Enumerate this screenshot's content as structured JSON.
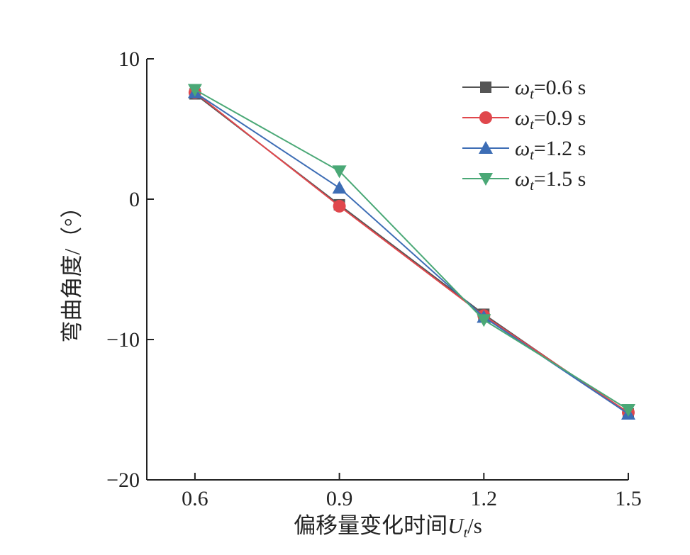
{
  "chart_data": {
    "type": "line",
    "title": "",
    "xlabel_prefix": "偏移量变化时间",
    "xlabel_var": "U",
    "xlabel_sub": "t",
    "xlabel_unit": "/s",
    "ylabel": "弯曲角度/（°）",
    "categories": [
      "0.6",
      "0.9",
      "1.2",
      "1.5"
    ],
    "x": [
      0.6,
      0.9,
      1.2,
      1.5
    ],
    "xlim": [
      0.5,
      1.5
    ],
    "ylim": [
      -20,
      10
    ],
    "yticks": [
      10,
      0,
      -10,
      -20
    ],
    "ytick_labels": [
      "10",
      "0",
      "−10",
      "−20"
    ],
    "xtick_labels": [
      "0.6",
      "0.9",
      "1.2",
      "1.5"
    ],
    "grid": false,
    "legend_position": "top-right",
    "series": [
      {
        "legend_symbol": "ω",
        "legend_sub": "t",
        "legend_value": "=0.6 s",
        "values": [
          7.5,
          -0.4,
          -8.2,
          -15.3
        ],
        "color": "#555555",
        "marker": "square"
      },
      {
        "legend_symbol": "ω",
        "legend_sub": "t",
        "legend_value": "=0.9 s",
        "values": [
          7.6,
          -0.5,
          -8.3,
          -15.2
        ],
        "color": "#e0474c",
        "marker": "circle"
      },
      {
        "legend_symbol": "ω",
        "legend_sub": "t",
        "legend_value": "=1.2 s",
        "values": [
          7.6,
          0.8,
          -8.4,
          -15.3
        ],
        "color": "#3d6db5",
        "marker": "triangle-up"
      },
      {
        "legend_symbol": "ω",
        "legend_sub": "t",
        "legend_value": "=1.5 s",
        "values": [
          7.8,
          2.0,
          -8.6,
          -15.0
        ],
        "color": "#4aa876",
        "marker": "triangle-down"
      }
    ]
  }
}
